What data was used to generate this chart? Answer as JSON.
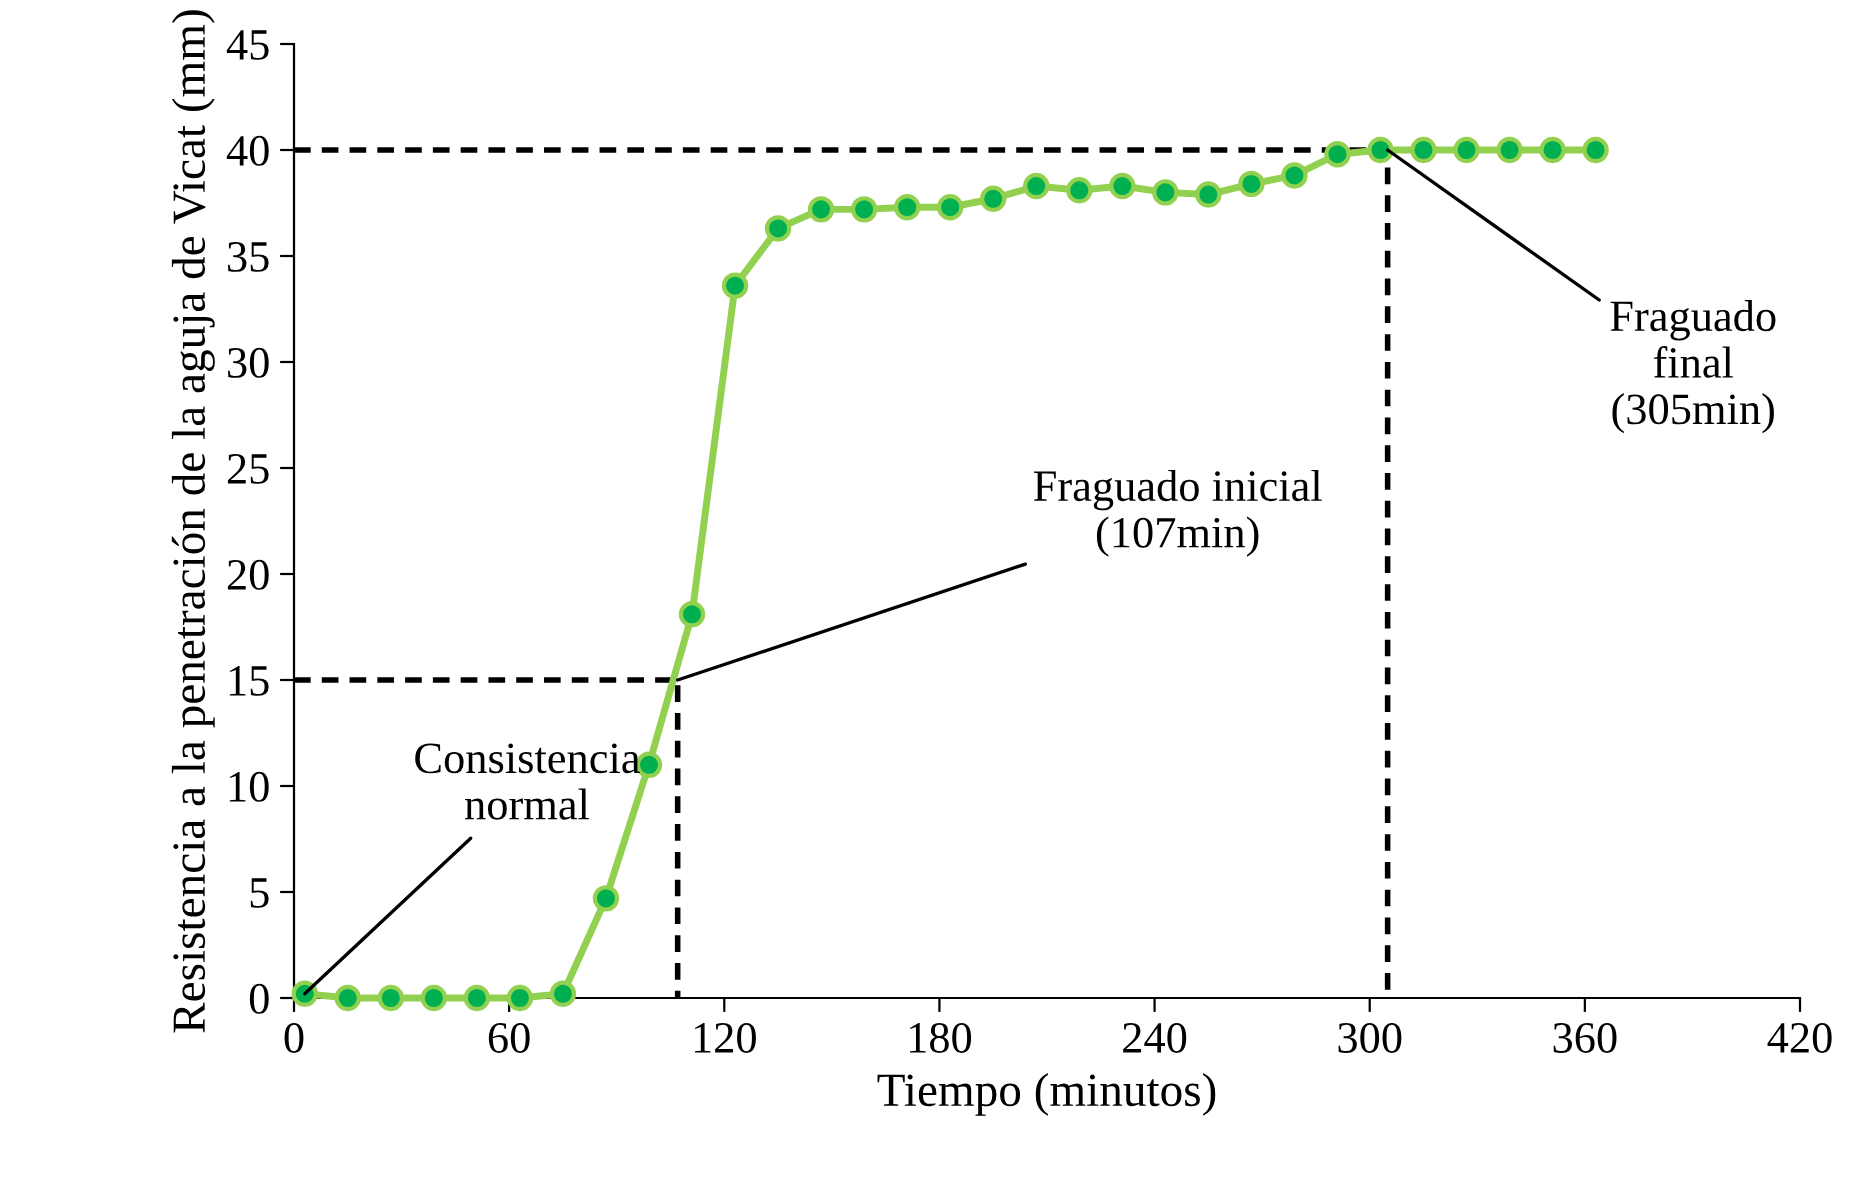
{
  "chart_data": {
    "type": "line",
    "xlabel": "Tiempo (minutos)",
    "ylabel": "Resistencia a la penetración de la aguja de Vicat (mm)",
    "x": [
      3,
      15,
      27,
      39,
      51,
      63,
      75,
      87,
      99,
      111,
      123,
      135,
      147,
      159,
      171,
      183,
      195,
      207,
      219,
      231,
      243,
      255,
      267,
      279,
      291,
      303,
      315,
      327,
      339,
      351,
      363
    ],
    "series": [
      {
        "color": "#92d050",
        "marker": "circle",
        "line_style": "solid",
        "values": [
          0.2,
          0,
          0,
          0,
          0,
          0,
          0.2,
          4.7,
          11,
          18.1,
          33.6,
          36.3,
          37.2,
          37.2,
          37.3,
          37.3,
          37.7,
          38.3,
          38.1,
          38.3,
          38,
          37.9,
          38.4,
          38.8,
          39.8,
          40,
          40,
          40,
          40,
          40,
          40
        ]
      },
      {
        "color": "#000000",
        "marker": "none",
        "line_style": "dashed",
        "x": [
          0,
          107,
          107
        ],
        "values": [
          15,
          15,
          0
        ]
      },
      {
        "color": "#000000",
        "marker": "none",
        "line_style": "dashed",
        "x": [
          0,
          305,
          305
        ],
        "values": [
          40,
          40,
          0
        ]
      }
    ],
    "annotations": [
      {
        "text": "Consistencia\nnormal",
        "x": 3,
        "y": 0.2
      },
      {
        "text": "Fraguado inicial\n(107min)",
        "x": 107,
        "y": 15
      },
      {
        "text": "Fraguado\nfinal\n(305min)",
        "x": 305,
        "y": 40
      }
    ],
    "xlim": [
      0,
      420
    ],
    "xticks": [
      0,
      60,
      120,
      180,
      240,
      300,
      360,
      420
    ],
    "ylim": [
      0,
      45
    ],
    "yticks": [
      0,
      5,
      10,
      15,
      20,
      25,
      30,
      35,
      40,
      45
    ],
    "grid": false,
    "legend": false
  }
}
